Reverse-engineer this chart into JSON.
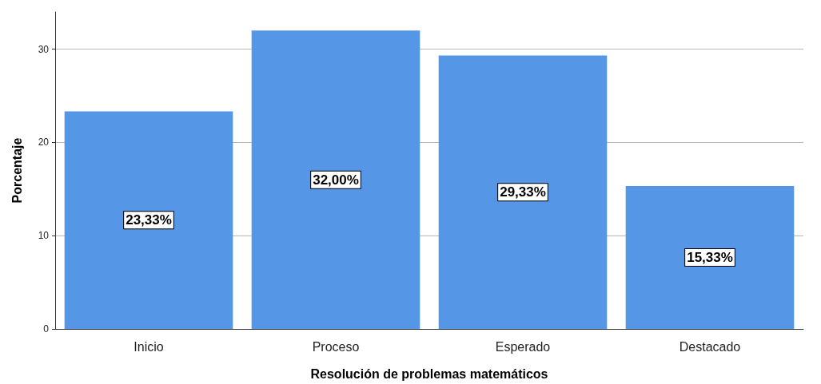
{
  "chart_data": {
    "type": "bar",
    "xlabel": "Resolución de problemas matemáticos",
    "ylabel": "Porcentaje",
    "categories": [
      "Inicio",
      "Proceso",
      "Esperado",
      "Destacado"
    ],
    "values": [
      23.33,
      32.0,
      29.33,
      15.33
    ],
    "value_labels": [
      "23,33%",
      "32,00%",
      "29,33%",
      "15,33%"
    ],
    "color": "#5596e6",
    "ylim": [
      0,
      34
    ],
    "yticks": [
      0,
      10,
      20,
      30
    ],
    "grid": "y"
  }
}
